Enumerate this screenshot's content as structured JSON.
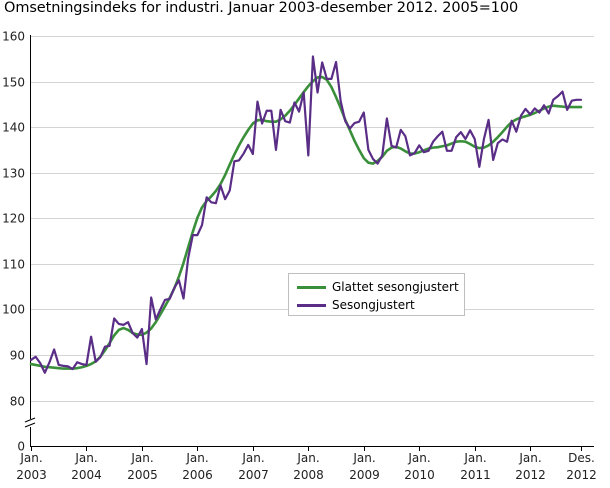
{
  "chart_data": {
    "type": "line",
    "title": "Omsetningsindeks for industri. Januar 2003-desember 2012. 2005=100",
    "xlabel": "",
    "ylabel": "",
    "ylim": [
      0,
      160
    ],
    "axis_break": [
      0,
      80
    ],
    "yticks": [
      0,
      80,
      90,
      100,
      110,
      120,
      130,
      140,
      150,
      160
    ],
    "grid": "horizontal",
    "legend_position": "center-right",
    "x_start": "2003-01",
    "x_tick_labels": [
      {
        "label": "Jan.",
        "year": "2003",
        "month_index": 0
      },
      {
        "label": "Jan.",
        "year": "2004",
        "month_index": 12
      },
      {
        "label": "Jan.",
        "year": "2005",
        "month_index": 24
      },
      {
        "label": "Jan.",
        "year": "2006",
        "month_index": 36
      },
      {
        "label": "Jan.",
        "year": "2007",
        "month_index": 48
      },
      {
        "label": "Jan.",
        "year": "2008",
        "month_index": 60
      },
      {
        "label": "Jan.",
        "year": "2009",
        "month_index": 72
      },
      {
        "label": "Jan.",
        "year": "2010",
        "month_index": 84
      },
      {
        "label": "Jan.",
        "year": "2011",
        "month_index": 96
      },
      {
        "label": "Jan.",
        "year": "2012",
        "month_index": 108
      },
      {
        "label": "Des.",
        "year": "2012",
        "month_index": 119
      }
    ],
    "series": [
      {
        "name": "Glattet sesongjustert",
        "color": "#3a8f3a",
        "values": [
          88.0,
          87.8,
          87.6,
          87.4,
          87.3,
          87.2,
          87.1,
          87.0,
          87.0,
          87.0,
          87.1,
          87.3,
          87.6,
          88.0,
          88.6,
          89.6,
          91.0,
          92.6,
          94.3,
          95.5,
          95.9,
          95.5,
          94.8,
          94.5,
          94.4,
          94.9,
          95.8,
          97.2,
          98.9,
          100.7,
          102.5,
          104.6,
          107.2,
          110.2,
          113.6,
          117.0,
          120.1,
          122.4,
          123.8,
          124.8,
          126.0,
          127.5,
          129.5,
          131.8,
          134.0,
          136.0,
          137.8,
          139.4,
          140.8,
          141.5,
          141.6,
          141.3,
          141.2,
          141.2,
          141.7,
          142.5,
          143.6,
          144.9,
          146.3,
          147.7,
          149.0,
          150.1,
          150.9,
          151.0,
          150.4,
          148.8,
          146.6,
          144.2,
          141.6,
          139.3,
          137.0,
          135.0,
          133.2,
          132.2,
          132.0,
          132.6,
          133.5,
          134.8,
          135.5,
          135.7,
          135.3,
          134.7,
          134.2,
          134.2,
          134.5,
          134.9,
          135.3,
          135.5,
          135.6,
          135.8,
          136.0,
          136.4,
          136.8,
          136.9,
          136.8,
          136.3,
          135.7,
          135.4,
          135.5,
          136.0,
          136.8,
          137.8,
          138.9,
          140.1,
          141.1,
          141.7,
          142.1,
          142.4,
          142.7,
          143.1,
          143.6,
          144.1,
          144.5,
          144.7,
          144.6,
          144.5,
          144.4,
          144.4,
          144.4,
          144.4
        ]
      },
      {
        "name": "Sesongjustert",
        "color": "#5a2d86",
        "values": [
          88.9,
          89.6,
          88.2,
          86.1,
          88.4,
          91.2,
          87.8,
          87.6,
          87.5,
          86.9,
          88.4,
          88.0,
          87.8,
          94.0,
          88.5,
          89.5,
          91.8,
          92.0,
          98.0,
          96.8,
          96.6,
          97.2,
          94.8,
          93.8,
          95.7,
          88.0,
          102.6,
          97.8,
          100.0,
          102.1,
          102.3,
          104.7,
          106.4,
          102.4,
          111.2,
          116.3,
          116.3,
          118.5,
          124.6,
          123.5,
          123.3,
          127.2,
          124.2,
          126.1,
          132.5,
          132.7,
          134.2,
          136.1,
          134.1,
          145.6,
          140.8,
          143.6,
          143.6,
          135.0,
          143.8,
          141.3,
          141.0,
          145.4,
          143.4,
          147.6,
          133.8,
          155.5,
          147.6,
          154.2,
          150.6,
          150.6,
          154.3,
          145.7,
          141.3,
          139.7,
          140.9,
          141.2,
          143.2,
          135.0,
          133.0,
          132.0,
          133.8,
          141.9,
          135.9,
          135.5,
          139.4,
          138.0,
          133.8,
          134.3,
          136.0,
          134.5,
          134.8,
          136.8,
          138.0,
          139.0,
          134.8,
          134.8,
          137.8,
          138.9,
          137.4,
          139.3,
          137.4,
          131.3,
          137.4,
          141.6,
          132.8,
          136.5,
          137.3,
          136.8,
          141.4,
          139.0,
          142.5,
          144.0,
          142.8,
          144.1,
          143.2,
          144.8,
          143.0,
          146.0,
          146.8,
          147.8,
          143.8,
          145.8,
          146.0,
          146.0
        ]
      }
    ]
  }
}
